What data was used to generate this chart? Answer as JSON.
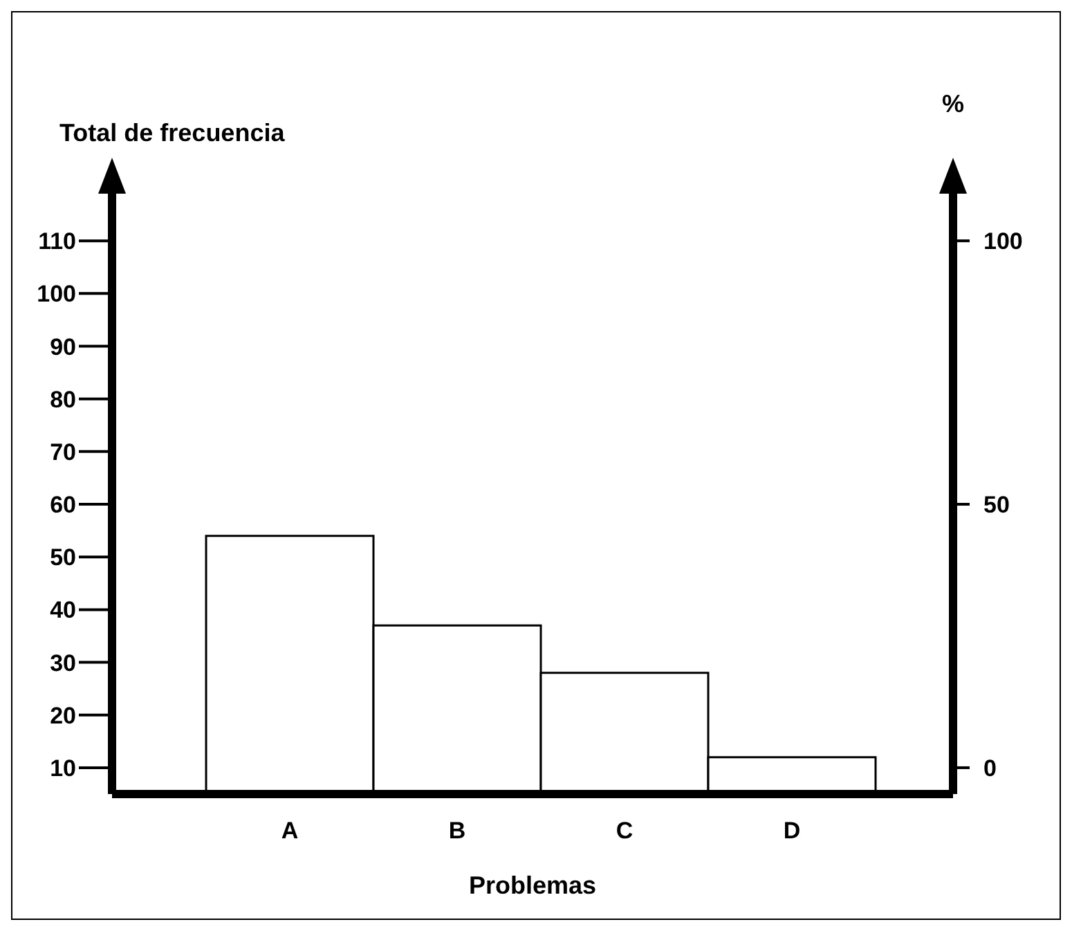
{
  "chart_data": {
    "type": "bar",
    "categories": [
      "A",
      "B",
      "C",
      "D"
    ],
    "values": [
      54,
      37,
      28,
      12
    ],
    "color": "#ffffff",
    "xlabel": "Problemas",
    "ylabel": "Total de frecuencia",
    "y2label": "%",
    "ylim": [
      5,
      120
    ],
    "yticks": [
      10,
      20,
      30,
      40,
      50,
      60,
      70,
      80,
      90,
      100,
      110
    ],
    "y2lim": [
      -5,
      110
    ],
    "y2ticks": [
      0,
      50,
      100
    ],
    "grid": false,
    "legend": false
  }
}
